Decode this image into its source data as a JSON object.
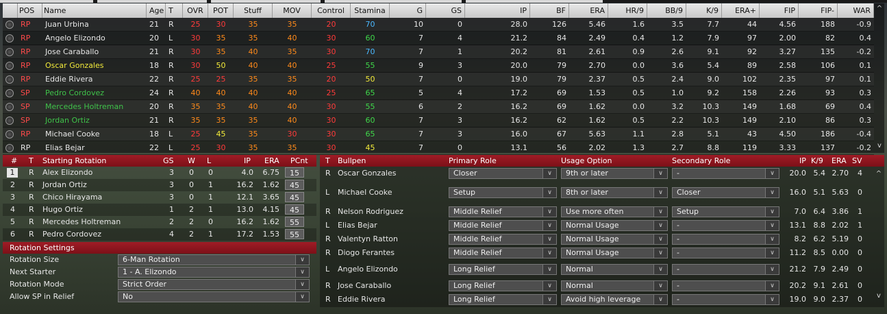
{
  "players_table": {
    "headers": [
      "POS",
      "Name",
      "Age",
      "T",
      "OVR",
      "POT",
      "Stuff",
      "MOV",
      "Control",
      "Stamina",
      "G",
      "GS",
      "IP",
      "BF",
      "ERA",
      "HR/9",
      "BB/9",
      "K/9",
      "ERA+",
      "FIP",
      "FIP-",
      "WAR"
    ],
    "rows": [
      {
        "pos": "RP",
        "name": "Juan Urbina",
        "age": "21",
        "t": "R",
        "ovr": "25",
        "pot": "30",
        "stuff": "35",
        "mov": "35",
        "control": "20",
        "stamina": "70",
        "g": "10",
        "gs": "0",
        "ip": "28.0",
        "bf": "126",
        "era": "5.46",
        "hr9": "1.6",
        "bb9": "3.5",
        "k9": "7.7",
        "eraplus": "44",
        "fip": "4.56",
        "fipminus": "188",
        "war": "-0.9"
      },
      {
        "pos": "RP",
        "name": "Angelo Elizondo",
        "age": "20",
        "t": "L",
        "ovr": "30",
        "pot": "35",
        "stuff": "35",
        "mov": "40",
        "control": "30",
        "stamina": "60",
        "g": "7",
        "gs": "4",
        "ip": "21.2",
        "bf": "84",
        "era": "2.49",
        "hr9": "0.4",
        "bb9": "1.2",
        "k9": "7.9",
        "eraplus": "97",
        "fip": "2.00",
        "fipminus": "82",
        "war": "0.4"
      },
      {
        "pos": "RP",
        "name": "Jose Caraballo",
        "age": "21",
        "t": "R",
        "ovr": "30",
        "pot": "35",
        "stuff": "40",
        "mov": "35",
        "control": "30",
        "stamina": "70",
        "g": "7",
        "gs": "1",
        "ip": "20.2",
        "bf": "81",
        "era": "2.61",
        "hr9": "0.9",
        "bb9": "2.6",
        "k9": "9.1",
        "eraplus": "92",
        "fip": "3.27",
        "fipminus": "135",
        "war": "-0.2"
      },
      {
        "pos": "RP",
        "name": "Oscar Gonzales",
        "age": "18",
        "t": "R",
        "ovr": "30",
        "pot": "50",
        "stuff": "40",
        "mov": "40",
        "control": "25",
        "stamina": "55",
        "g": "9",
        "gs": "3",
        "ip": "20.0",
        "bf": "79",
        "era": "2.70",
        "hr9": "0.0",
        "bb9": "3.6",
        "k9": "5.4",
        "eraplus": "89",
        "fip": "2.58",
        "fipminus": "106",
        "war": "0.1"
      },
      {
        "pos": "RP",
        "name": "Eddie Rivera",
        "age": "22",
        "t": "R",
        "ovr": "25",
        "pot": "25",
        "stuff": "35",
        "mov": "35",
        "control": "20",
        "stamina": "50",
        "g": "7",
        "gs": "0",
        "ip": "19.0",
        "bf": "79",
        "era": "2.37",
        "hr9": "0.5",
        "bb9": "2.4",
        "k9": "9.0",
        "eraplus": "102",
        "fip": "2.35",
        "fipminus": "97",
        "war": "0.1"
      },
      {
        "pos": "SP",
        "name": "Pedro Cordovez",
        "age": "24",
        "t": "R",
        "ovr": "40",
        "pot": "40",
        "stuff": "40",
        "mov": "40",
        "control": "25",
        "stamina": "65",
        "g": "5",
        "gs": "4",
        "ip": "17.2",
        "bf": "69",
        "era": "1.53",
        "hr9": "0.5",
        "bb9": "1.0",
        "k9": "9.2",
        "eraplus": "158",
        "fip": "2.26",
        "fipminus": "93",
        "war": "0.3"
      },
      {
        "pos": "SP",
        "name": "Mercedes Holtreman",
        "age": "20",
        "t": "R",
        "ovr": "35",
        "pot": "35",
        "stuff": "40",
        "mov": "40",
        "control": "30",
        "stamina": "55",
        "g": "6",
        "gs": "2",
        "ip": "16.2",
        "bf": "69",
        "era": "1.62",
        "hr9": "0.0",
        "bb9": "3.2",
        "k9": "10.3",
        "eraplus": "149",
        "fip": "1.68",
        "fipminus": "69",
        "war": "0.4"
      },
      {
        "pos": "SP",
        "name": "Jordan Ortiz",
        "age": "21",
        "t": "R",
        "ovr": "35",
        "pot": "35",
        "stuff": "35",
        "mov": "40",
        "control": "30",
        "stamina": "60",
        "g": "7",
        "gs": "3",
        "ip": "16.2",
        "bf": "62",
        "era": "1.62",
        "hr9": "0.5",
        "bb9": "2.2",
        "k9": "10.3",
        "eraplus": "149",
        "fip": "2.10",
        "fipminus": "86",
        "war": "0.3"
      },
      {
        "pos": "RP",
        "name": "Michael Cooke",
        "age": "18",
        "t": "L",
        "ovr": "25",
        "pot": "45",
        "stuff": "35",
        "mov": "30",
        "control": "30",
        "stamina": "65",
        "g": "7",
        "gs": "3",
        "ip": "16.0",
        "bf": "67",
        "era": "5.63",
        "hr9": "1.1",
        "bb9": "2.8",
        "k9": "5.1",
        "eraplus": "43",
        "fip": "4.50",
        "fipminus": "186",
        "war": "-0.4"
      },
      {
        "pos": "RP",
        "name": "Elias Bejar",
        "age": "22",
        "t": "L",
        "ovr": "25",
        "pot": "30",
        "stuff": "35",
        "mov": "35",
        "control": "30",
        "stamina": "45",
        "g": "7",
        "gs": "0",
        "ip": "13.1",
        "bf": "56",
        "era": "2.02",
        "hr9": "1.3",
        "bb9": "2.7",
        "k9": "8.8",
        "eraplus": "119",
        "fip": "3.33",
        "fipminus": "137",
        "war": "-0.2"
      }
    ]
  },
  "rotation": {
    "headers": {
      "num": "#",
      "t": "T",
      "name": "Starting Rotation",
      "gs": "GS",
      "w": "W",
      "l": "L",
      "ip": "IP",
      "era": "ERA",
      "pcnt": "PCnt"
    },
    "rows": [
      {
        "num": "1",
        "t": "R",
        "name": "Alex Elizondo",
        "gs": "3",
        "w": "0",
        "l": "0",
        "ip": "4.0",
        "era": "6.75",
        "pcnt": "15"
      },
      {
        "num": "2",
        "t": "R",
        "name": "Jordan Ortiz",
        "gs": "3",
        "w": "0",
        "l": "1",
        "ip": "16.2",
        "era": "1.62",
        "pcnt": "45"
      },
      {
        "num": "3",
        "t": "R",
        "name": "Chico Hirayama",
        "gs": "3",
        "w": "0",
        "l": "1",
        "ip": "12.1",
        "era": "3.65",
        "pcnt": "45"
      },
      {
        "num": "4",
        "t": "R",
        "name": "Hugo Ortiz",
        "gs": "1",
        "w": "2",
        "l": "1",
        "ip": "13.0",
        "era": "4.15",
        "pcnt": "45"
      },
      {
        "num": "5",
        "t": "R",
        "name": "Mercedes Holtreman",
        "gs": "2",
        "w": "2",
        "l": "0",
        "ip": "16.2",
        "era": "1.62",
        "pcnt": "55"
      },
      {
        "num": "6",
        "t": "R",
        "name": "Pedro Cordovez",
        "gs": "4",
        "w": "2",
        "l": "1",
        "ip": "17.2",
        "era": "1.53",
        "pcnt": "55"
      }
    ]
  },
  "rotation_settings": {
    "title": "Rotation Settings",
    "items": [
      {
        "label": "Rotation Size",
        "value": "6-Man Rotation"
      },
      {
        "label": "Next Starter",
        "value": "1 - A. Elizondo"
      },
      {
        "label": "Rotation Mode",
        "value": "Strict Order"
      },
      {
        "label": "Allow SP in Relief",
        "value": "No"
      }
    ]
  },
  "bullpen": {
    "headers": {
      "t": "T",
      "name": "Bullpen",
      "primary": "Primary Role",
      "usage": "Usage Option",
      "secondary": "Secondary Role",
      "ip": "IP",
      "k9": "K/9",
      "era": "ERA",
      "sv": "SV"
    },
    "rows": [
      {
        "t": "R",
        "name": "Oscar Gonzales",
        "primary": "Closer",
        "usage": "9th or later",
        "secondary": "-",
        "ip": "20.0",
        "k9": "5.4",
        "era": "2.70",
        "sv": "4"
      },
      {
        "t": "L",
        "name": "Michael Cooke",
        "primary": "Setup",
        "usage": "8th or later",
        "secondary": "Closer",
        "ip": "16.0",
        "k9": "5.1",
        "era": "5.63",
        "sv": "0"
      },
      {
        "t": "R",
        "name": "Nelson Rodriguez",
        "primary": "Middle Relief",
        "usage": "Use more often",
        "secondary": "Setup",
        "ip": "7.0",
        "k9": "6.4",
        "era": "3.86",
        "sv": "1"
      },
      {
        "t": "L",
        "name": "Elias Bejar",
        "primary": "Middle Relief",
        "usage": "Normal Usage",
        "secondary": "-",
        "ip": "13.1",
        "k9": "8.8",
        "era": "2.02",
        "sv": "1"
      },
      {
        "t": "R",
        "name": "Valentyn Ratton",
        "primary": "Middle Relief",
        "usage": "Normal Usage",
        "secondary": "-",
        "ip": "8.2",
        "k9": "6.2",
        "era": "5.19",
        "sv": "0"
      },
      {
        "t": "R",
        "name": "Diogo Ferantes",
        "primary": "Middle Relief",
        "usage": "Normal Usage",
        "secondary": "-",
        "ip": "11.2",
        "k9": "8.5",
        "era": "0.00",
        "sv": "0"
      },
      {
        "t": "L",
        "name": "Angelo Elizondo",
        "primary": "Long Relief",
        "usage": "Normal",
        "secondary": "-",
        "ip": "21.2",
        "k9": "7.9",
        "era": "2.49",
        "sv": "0"
      },
      {
        "t": "R",
        "name": "Jose Caraballo",
        "primary": "Long Relief",
        "usage": "Normal",
        "secondary": "-",
        "ip": "20.2",
        "k9": "9.1",
        "era": "2.61",
        "sv": "0"
      },
      {
        "t": "R",
        "name": "Eddie Rivera",
        "primary": "Long Relief",
        "usage": "Avoid high leverage",
        "secondary": "-",
        "ip": "19.0",
        "k9": "9.0",
        "era": "2.37",
        "sv": "0"
      }
    ]
  },
  "scroll": {
    "up": "^",
    "down": "v"
  },
  "colors": {
    "header_red": "#8e1620",
    "rating_red": "#ff3a3a",
    "rating_orange": "#ff8a1a",
    "rating_yellow": "#f2ea3a",
    "rating_green": "#3fd84a",
    "rating_blue": "#4ab8ff",
    "name_green": "#3fc24a",
    "name_yellow": "#f2ea3a"
  }
}
